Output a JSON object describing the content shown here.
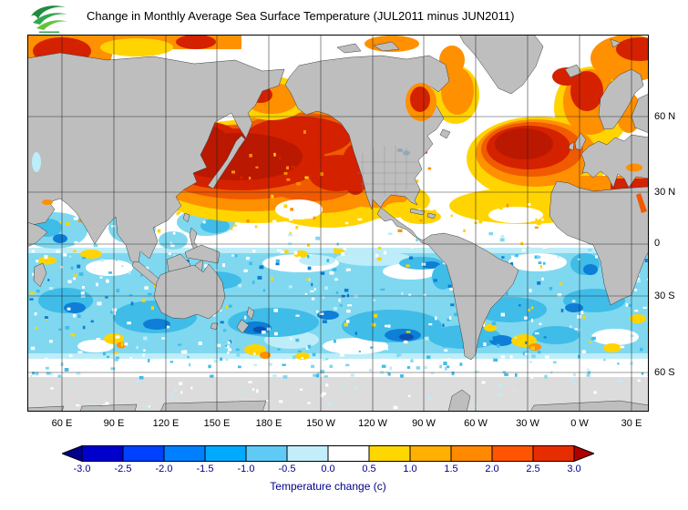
{
  "header": {
    "title": "Change in Monthly Average Sea Surface Temperature (JUL2011 minus JUN2011)"
  },
  "map": {
    "lat_labels": [
      "60 N",
      "30 N",
      "0",
      "30 S",
      "60 S"
    ],
    "lon_labels": [
      "60 E",
      "90 E",
      "120 E",
      "150 E",
      "180 E",
      "150 W",
      "120 W",
      "90 W",
      "60 W",
      "30 W",
      "0 W",
      "30 E"
    ]
  },
  "colorbar": {
    "ticks": [
      "-3.0",
      "-2.5",
      "-2.0",
      "-1.5",
      "-1.0",
      "-0.5",
      "0.0",
      "0.5",
      "1.0",
      "1.5",
      "2.0",
      "2.5",
      "3.0"
    ],
    "caption": "Temperature change (c)",
    "segment_colors": [
      "#00008B",
      "#0000CD",
      "#0040FF",
      "#0080FF",
      "#00AAFF",
      "#5FCBF5",
      "#C3EEF9",
      "#FFFFFF",
      "#FFD700",
      "#FFB000",
      "#FF8A00",
      "#FF5500",
      "#E62D00",
      "#AF0000"
    ]
  },
  "chart_data": {
    "type": "heatmap",
    "title": "Change in Monthly Average Sea Surface Temperature (JUL2011 minus JUN2011)",
    "variable": "monthly average sea surface temperature change",
    "period": "JUL2011 minus JUN2011",
    "units": "c",
    "value_range": [
      -3.0,
      3.0
    ],
    "colorbar_step": 0.5,
    "projection": "global world map, Pacific-centered (40E eastward around to 40E)",
    "lat_gridlines": [
      "60 N",
      "30 N",
      "0",
      "30 S",
      "60 S"
    ],
    "lon_gridlines": [
      "60 E",
      "90 E",
      "120 E",
      "150 E",
      "180 E",
      "150 W",
      "120 W",
      "90 W",
      "60 W",
      "30 W",
      "0 W",
      "30 E"
    ],
    "legend_position": "bottom",
    "palette": {
      "white": "#FFFFFF",
      "cyan_pale": "#BDEDF8",
      "cyan_light": "#7FD8F0",
      "cyan_med": "#3FBCE8",
      "blue": "#0E7ED6",
      "dark_blue": "#0A50B4",
      "yellow": "#FFD400",
      "orange": "#FF9000",
      "red_orange": "#F05A00",
      "red": "#D42100",
      "dark_red": "#BA1800",
      "land": "#BEBEBE",
      "no_data": "#DCDCDC"
    },
    "regions": [
      {
        "region": "North Pacific 30N-60N",
        "anomaly_c": "+2 to +3"
      },
      {
        "region": "Sea of Japan / Kuroshio region",
        "anomaly_c": "+2.5 to +3"
      },
      {
        "region": "Bering Sea / Gulf of Alaska",
        "anomaly_c": "+1 to +2.5"
      },
      {
        "region": "North Atlantic 35N-55N",
        "anomaly_c": "+2 to +3"
      },
      {
        "region": "Arctic coastal seas (top-left and top-right of map)",
        "anomaly_c": "+1.5 to +3"
      },
      {
        "region": "Hudson Bay",
        "anomaly_c": "+2 to +3"
      },
      {
        "region": "Mediterranean and Black Sea",
        "anomaly_c": "+1.5 to +2.5"
      },
      {
        "region": "Subtropics 15N-30N",
        "anomaly_c": "0 to +1.5"
      },
      {
        "region": "Equatorial band 10N-10S",
        "anomaly_c": "-0.5 to +0.5, scattered patches"
      },
      {
        "region": "Arabian Sea / Bay of Bengal / South China Sea",
        "anomaly_c": "-1 to -0.5"
      },
      {
        "region": "Southern oceans 10S-50S",
        "anomaly_c": "-1.5 to -0.5 with scattered +0.5 to +1 spots"
      },
      {
        "region": "Southern Ocean 50S-60S",
        "anomaly_c": "-0.5 to 0"
      },
      {
        "region": "South of 60S",
        "anomaly_c": "no data (gray)"
      }
    ]
  }
}
